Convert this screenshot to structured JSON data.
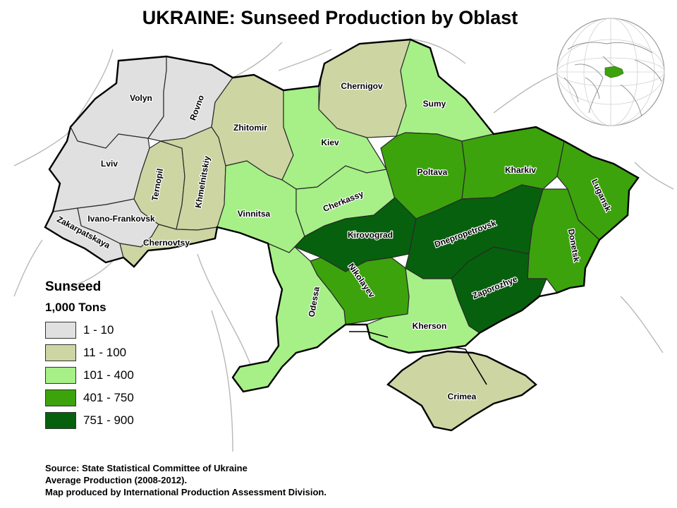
{
  "title": "UKRAINE: Sunseed Production by Oblast",
  "legend": {
    "title": "Sunseed",
    "units": "1,000 Tons",
    "classes": [
      {
        "label": "1 - 10",
        "color": "#e0e0e0"
      },
      {
        "label": "11 - 100",
        "color": "#cdd5a3"
      },
      {
        "label": "101 - 400",
        "color": "#a6f087"
      },
      {
        "label": "401 - 750",
        "color": "#3ca30c"
      },
      {
        "label": "751 - 900",
        "color": "#07600d"
      }
    ]
  },
  "oblasts": [
    {
      "id": "volyn",
      "name": "Volyn",
      "class": 0
    },
    {
      "id": "rovno",
      "name": "Rovno",
      "class": 0
    },
    {
      "id": "lviv",
      "name": "Lviv",
      "class": 0
    },
    {
      "id": "ivano-frankovsk",
      "name": "Ivano-Frankovsk",
      "class": 0
    },
    {
      "id": "zakarpatskaya",
      "name": "Zakarpatskaya",
      "class": 0
    },
    {
      "id": "ternopil",
      "name": "Ternopil",
      "class": 1
    },
    {
      "id": "khmelnitskiy",
      "name": "Khmelnitskiy",
      "class": 1
    },
    {
      "id": "chernovtsy",
      "name": "Chernovtsy",
      "class": 1
    },
    {
      "id": "zhitomir",
      "name": "Zhitomir",
      "class": 1
    },
    {
      "id": "chernigov",
      "name": "Chernigov",
      "class": 1
    },
    {
      "id": "crimea",
      "name": "Crimea",
      "class": 1
    },
    {
      "id": "kiev",
      "name": "Kiev",
      "class": 2
    },
    {
      "id": "sumy",
      "name": "Sumy",
      "class": 2
    },
    {
      "id": "vinnitsa",
      "name": "Vinnitsa",
      "class": 2
    },
    {
      "id": "cherkassy",
      "name": "Cherkassy",
      "class": 2
    },
    {
      "id": "odessa",
      "name": "Odessa",
      "class": 2
    },
    {
      "id": "kherson",
      "name": "Kherson",
      "class": 2
    },
    {
      "id": "poltava",
      "name": "Poltava",
      "class": 3
    },
    {
      "id": "kharkiv",
      "name": "Kharkiv",
      "class": 3
    },
    {
      "id": "lugansk",
      "name": "Lugansk",
      "class": 3
    },
    {
      "id": "donetsk",
      "name": "Donetsk",
      "class": 3
    },
    {
      "id": "nikolayev",
      "name": "Nikolayev",
      "class": 3
    },
    {
      "id": "kirovograd",
      "name": "Kirovograd",
      "class": 4
    },
    {
      "id": "dnepropetrovsk",
      "name": "Dnepropetrovsk",
      "class": 4
    },
    {
      "id": "zaporozhye",
      "name": "Zaporozhye",
      "class": 4
    }
  ],
  "source": [
    "Source: State Statistical Committee of Ukraine",
    "Average Production (2008-2012).",
    "Map produced by International Production Assessment Division."
  ],
  "locator": {
    "highlight_color": "#3ca30c"
  }
}
